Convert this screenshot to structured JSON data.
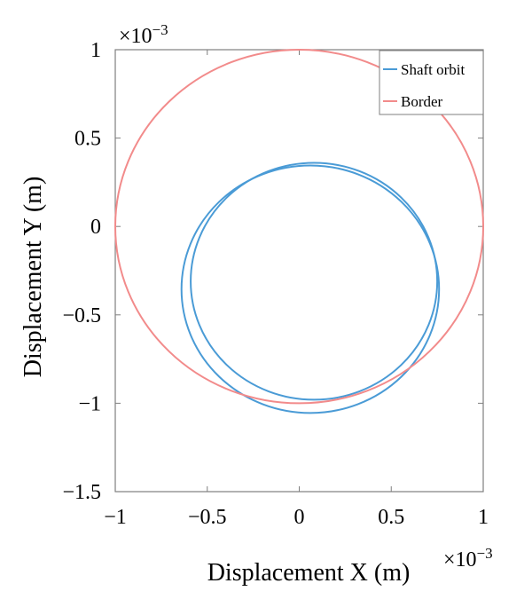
{
  "chart_data": {
    "type": "line",
    "xlabel": "Displacement X (m)",
    "ylabel": "Displacement Y (m)",
    "x_exponent": {
      "base": "×10",
      "power": "−3"
    },
    "y_exponent": {
      "base": "×10",
      "power": "−3"
    },
    "xlim": [
      -1,
      1
    ],
    "ylim": [
      -1.5,
      1
    ],
    "x_ticks": [
      -1,
      -0.5,
      0,
      0.5,
      1
    ],
    "y_ticks": [
      -1.5,
      -1,
      -0.5,
      0,
      0.5,
      1
    ],
    "x_tick_labels": [
      "−1",
      "−0.5",
      "0",
      "0.5",
      "1"
    ],
    "y_tick_labels": [
      "−1.5",
      "−1",
      "−0.5",
      "0",
      "0.5",
      "1"
    ],
    "grid": false,
    "legend_position": "top-right",
    "series": [
      {
        "name": "Shaft orbit",
        "color": "#4a9bd6",
        "loops": [
          {
            "cx": 0.08,
            "cy": -0.31,
            "rx": 0.67,
            "ry": 0.67
          },
          {
            "cx": 0.06,
            "cy": -0.355,
            "rx": 0.7,
            "ry": 0.7
          }
        ]
      },
      {
        "name": "Border",
        "color": "#f28b8b",
        "loops": [
          {
            "cx": 0,
            "cy": 0,
            "rx": 1,
            "ry": 1
          }
        ]
      }
    ]
  }
}
